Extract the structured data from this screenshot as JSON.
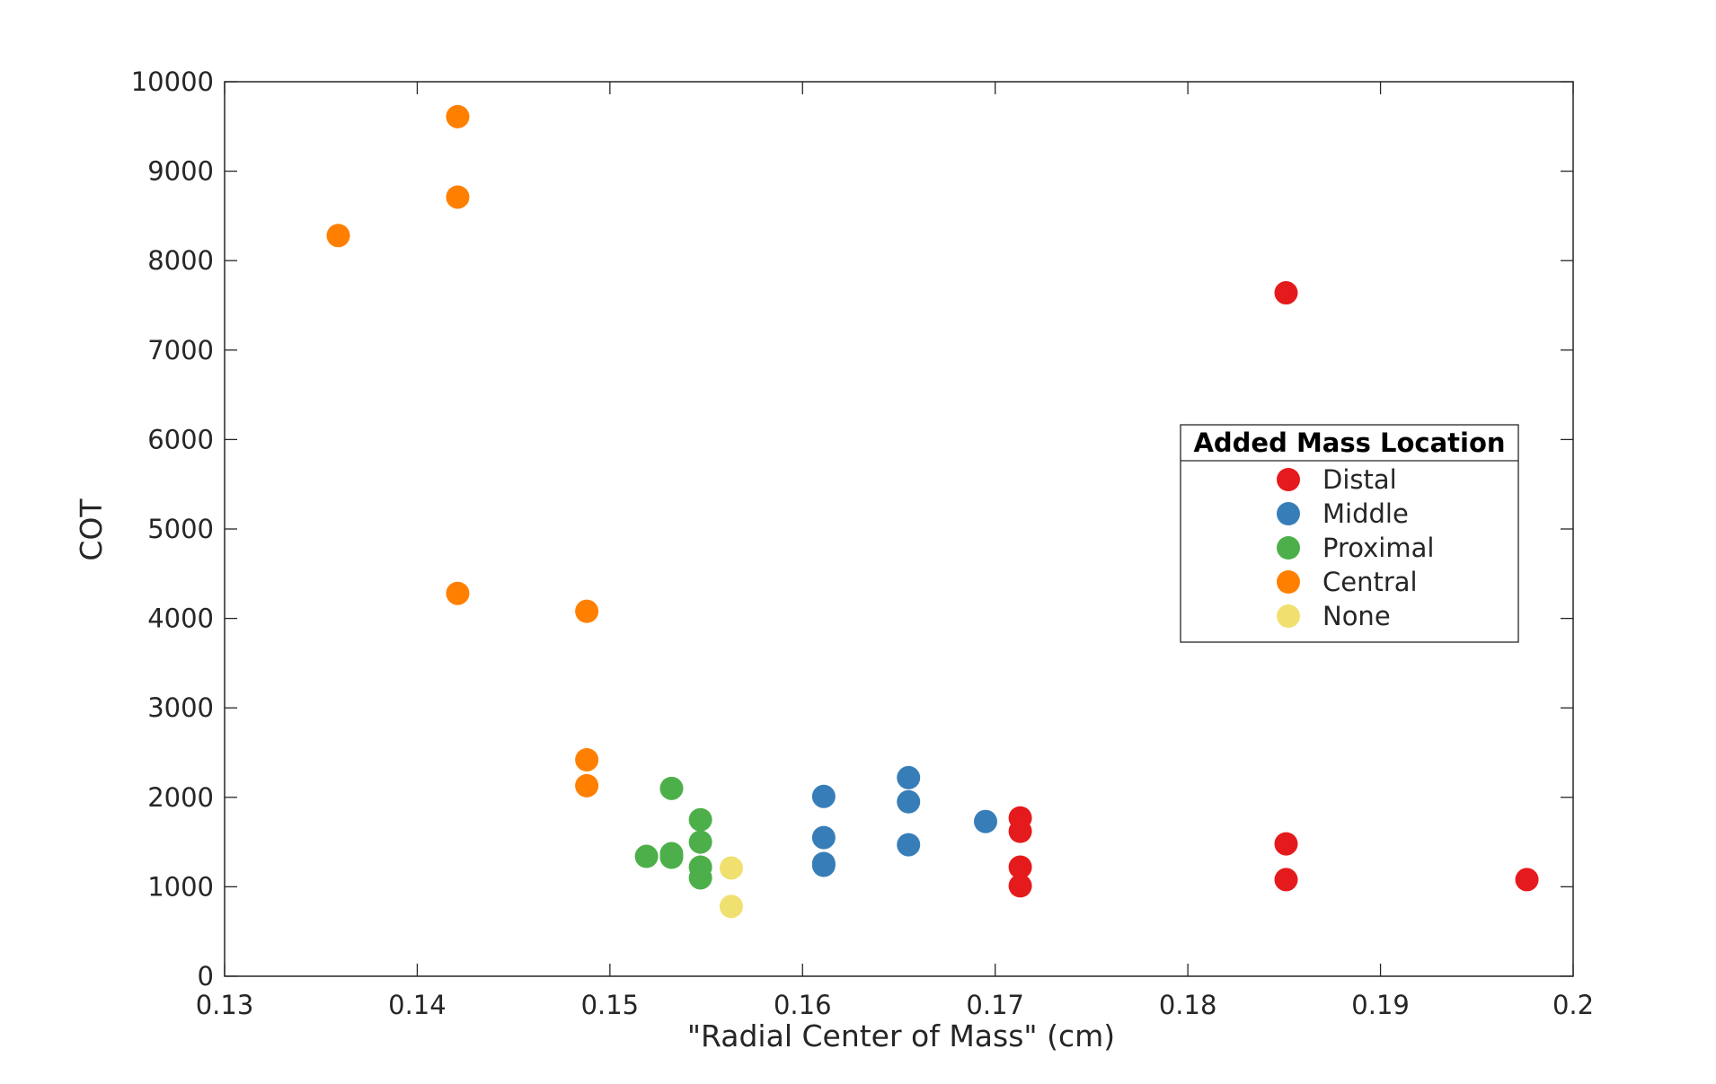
{
  "chart_data": {
    "type": "scatter",
    "title": "",
    "xlabel": "\"Radial Center of Mass\" (cm)",
    "ylabel": "COT",
    "xlim": [
      0.13,
      0.2
    ],
    "ylim": [
      0,
      10000
    ],
    "xticks": [
      0.13,
      0.14,
      0.15,
      0.16,
      0.17,
      0.18,
      0.19,
      0.2
    ],
    "xtick_labels": [
      "0.13",
      "0.14",
      "0.15",
      "0.16",
      "0.17",
      "0.18",
      "0.19",
      "0.2"
    ],
    "yticks": [
      0,
      1000,
      2000,
      3000,
      4000,
      5000,
      6000,
      7000,
      8000,
      9000,
      10000
    ],
    "ytick_labels": [
      "0",
      "1000",
      "2000",
      "3000",
      "4000",
      "5000",
      "6000",
      "7000",
      "8000",
      "9000",
      "10000"
    ],
    "grid": false,
    "legend": {
      "title": "Added Mass Location",
      "placement": "right-middle"
    },
    "series": [
      {
        "name": "Distal",
        "color": "#e41a1c",
        "points": [
          {
            "x": 0.1851,
            "y": 7640
          },
          {
            "x": 0.1713,
            "y": 1770
          },
          {
            "x": 0.1713,
            "y": 1620
          },
          {
            "x": 0.1713,
            "y": 1220
          },
          {
            "x": 0.1713,
            "y": 1010
          },
          {
            "x": 0.1851,
            "y": 1480
          },
          {
            "x": 0.1851,
            "y": 1080
          },
          {
            "x": 0.1976,
            "y": 1080
          }
        ]
      },
      {
        "name": "Middle",
        "color": "#377eb8",
        "points": [
          {
            "x": 0.1611,
            "y": 2010
          },
          {
            "x": 0.1611,
            "y": 1550
          },
          {
            "x": 0.1611,
            "y": 1240
          },
          {
            "x": 0.1611,
            "y": 1260
          },
          {
            "x": 0.1655,
            "y": 2220
          },
          {
            "x": 0.1655,
            "y": 1950
          },
          {
            "x": 0.1655,
            "y": 1470
          },
          {
            "x": 0.1695,
            "y": 1730
          }
        ]
      },
      {
        "name": "Proximal",
        "color": "#4daf4a",
        "points": [
          {
            "x": 0.1519,
            "y": 1340
          },
          {
            "x": 0.1532,
            "y": 2100
          },
          {
            "x": 0.1532,
            "y": 1370
          },
          {
            "x": 0.1532,
            "y": 1330
          },
          {
            "x": 0.1547,
            "y": 1750
          },
          {
            "x": 0.1547,
            "y": 1500
          },
          {
            "x": 0.1547,
            "y": 1220
          },
          {
            "x": 0.1547,
            "y": 1100
          }
        ]
      },
      {
        "name": "Central",
        "color": "#ff7f00",
        "points": [
          {
            "x": 0.1359,
            "y": 8280
          },
          {
            "x": 0.1421,
            "y": 9610
          },
          {
            "x": 0.1421,
            "y": 8710
          },
          {
            "x": 0.1421,
            "y": 4280
          },
          {
            "x": 0.1488,
            "y": 4080
          },
          {
            "x": 0.1488,
            "y": 2420
          },
          {
            "x": 0.1488,
            "y": 2130
          }
        ]
      },
      {
        "name": "None",
        "color": "#f0e070",
        "points": [
          {
            "x": 0.1563,
            "y": 1210
          },
          {
            "x": 0.1563,
            "y": 780
          }
        ]
      }
    ]
  }
}
